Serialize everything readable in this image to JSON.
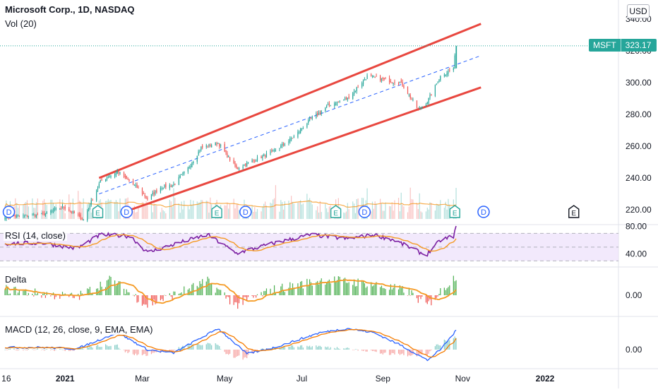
{
  "header": {
    "title": "Microsoft Corp., 1D, NASDAQ",
    "volume_label": "Vol (20)",
    "currency": "USD"
  },
  "ticker": {
    "symbol": "MSFT",
    "price": "323.17"
  },
  "colors": {
    "up": "#26a69a",
    "up_bar": "#4caf50",
    "down": "#ef5350",
    "rsi": "#7b1fa2",
    "ma": "#f59a23",
    "macd": "#2962ff",
    "signal": "#f57c00",
    "channel": "#e8473f",
    "midline": "#2962ff",
    "event_blue": "#2962ff",
    "event_green": "#26a69a",
    "price_line": "#26a69a",
    "rsi_band": "#ede0fb"
  },
  "chart_data": [
    {
      "type": "candlestick",
      "name": "Microsoft Corp., 1D, NASDAQ",
      "xaxis_labels": [
        "16",
        "2021",
        "Mar",
        "May",
        "Jul",
        "Sep",
        "Nov",
        "2022"
      ],
      "yaxis_ticks": [
        340,
        320,
        300,
        280,
        260,
        240,
        220
      ],
      "ylim": [
        212,
        348
      ],
      "last_price": 323.17,
      "price_anchors": [
        [
          "2020-11-16",
          216
        ],
        [
          "2020-11-30",
          216
        ],
        [
          "2020-12-15",
          217
        ],
        [
          "2020-12-31",
          222
        ],
        [
          "2021-01-15",
          214
        ],
        [
          "2021-01-28",
          238
        ],
        [
          "2021-02-10",
          244
        ],
        [
          "2021-02-25",
          234
        ],
        [
          "2021-03-05",
          227
        ],
        [
          "2021-03-15",
          234
        ],
        [
          "2021-03-25",
          236
        ],
        [
          "2021-04-05",
          246
        ],
        [
          "2021-04-15",
          259
        ],
        [
          "2021-04-28",
          262
        ],
        [
          "2021-05-12",
          246
        ],
        [
          "2021-05-25",
          251
        ],
        [
          "2021-06-10",
          257
        ],
        [
          "2021-06-25",
          266
        ],
        [
          "2021-07-08",
          277
        ],
        [
          "2021-07-22",
          286
        ],
        [
          "2021-08-05",
          290
        ],
        [
          "2021-08-20",
          304
        ],
        [
          "2021-09-01",
          302
        ],
        [
          "2021-09-15",
          300
        ],
        [
          "2021-09-28",
          283
        ],
        [
          "2021-10-05",
          288
        ],
        [
          "2021-10-15",
          304
        ],
        [
          "2021-10-25",
          309
        ],
        [
          "2021-10-27",
          323
        ]
      ],
      "channel": {
        "upper": [
          [
            "2021-01-27",
            240
          ],
          [
            "2021-11-15",
            337
          ]
        ],
        "lower": [
          [
            "2021-02-20",
            220
          ],
          [
            "2021-11-15",
            297
          ]
        ],
        "middle": [
          [
            "2021-01-27",
            230
          ],
          [
            "2021-11-15",
            317
          ]
        ]
      },
      "events": [
        {
          "date": "2020-11-19",
          "type": "D"
        },
        {
          "date": "2021-01-26",
          "type": "E"
        },
        {
          "date": "2021-02-17",
          "type": "D"
        },
        {
          "date": "2021-04-27",
          "type": "E"
        },
        {
          "date": "2021-05-19",
          "type": "D"
        },
        {
          "date": "2021-07-27",
          "type": "E"
        },
        {
          "date": "2021-08-18",
          "type": "D"
        },
        {
          "date": "2021-10-26",
          "type": "E"
        },
        {
          "date": "2021-11-17",
          "type": "D"
        },
        {
          "date": "2022-01-25",
          "type": "E"
        }
      ]
    },
    {
      "type": "line",
      "name": "RSI (14, close)",
      "label": "RSI (14, close)",
      "yaxis_ticks": [
        80,
        40
      ],
      "ylim": [
        30,
        82
      ],
      "bands": [
        70,
        30
      ],
      "anchors": [
        [
          "2020-11-16",
          55
        ],
        [
          "2020-12-15",
          56
        ],
        [
          "2021-01-10",
          48
        ],
        [
          "2021-01-28",
          68
        ],
        [
          "2021-02-20",
          66
        ],
        [
          "2021-03-05",
          42
        ],
        [
          "2021-03-25",
          54
        ],
        [
          "2021-04-20",
          68
        ],
        [
          "2021-05-12",
          41
        ],
        [
          "2021-06-10",
          56
        ],
        [
          "2021-07-08",
          68
        ],
        [
          "2021-08-05",
          62
        ],
        [
          "2021-08-25",
          68
        ],
        [
          "2021-09-10",
          60
        ],
        [
          "2021-10-04",
          38
        ],
        [
          "2021-10-15",
          60
        ],
        [
          "2021-10-25",
          66
        ],
        [
          "2021-10-27",
          79
        ]
      ]
    },
    {
      "type": "histogram",
      "name": "Delta",
      "label": "Delta",
      "yaxis_ticks": [
        0
      ],
      "anchors": [
        [
          "2020-11-16",
          3
        ],
        [
          "2020-12-10",
          1
        ],
        [
          "2021-01-10",
          -1
        ],
        [
          "2021-02-05",
          8
        ],
        [
          "2021-03-05",
          -5
        ],
        [
          "2021-04-20",
          7
        ],
        [
          "2021-05-12",
          -5
        ],
        [
          "2021-06-10",
          3
        ],
        [
          "2021-07-20",
          8
        ],
        [
          "2021-08-20",
          6
        ],
        [
          "2021-09-20",
          2
        ],
        [
          "2021-10-05",
          -5
        ],
        [
          "2021-10-27",
          10
        ]
      ]
    },
    {
      "type": "line",
      "name": "MACD (12, 26, close, 9, EMA, EMA)",
      "label": "MACD (12, 26, close, 9, EMA, EMA)",
      "yaxis_ticks": [
        0
      ],
      "anchors": [
        [
          "2020-11-16",
          0.5
        ],
        [
          "2020-12-15",
          0.5
        ],
        [
          "2021-01-10",
          0.2
        ],
        [
          "2021-02-10",
          4
        ],
        [
          "2021-03-05",
          0
        ],
        [
          "2021-03-25",
          -0.8
        ],
        [
          "2021-04-28",
          5
        ],
        [
          "2021-05-20",
          -1
        ],
        [
          "2021-06-10",
          0.5
        ],
        [
          "2021-07-15",
          4
        ],
        [
          "2021-08-05",
          5
        ],
        [
          "2021-08-25",
          4
        ],
        [
          "2021-09-15",
          1
        ],
        [
          "2021-10-05",
          -2.5
        ],
        [
          "2021-10-15",
          0
        ],
        [
          "2021-10-27",
          4.5
        ]
      ]
    }
  ]
}
